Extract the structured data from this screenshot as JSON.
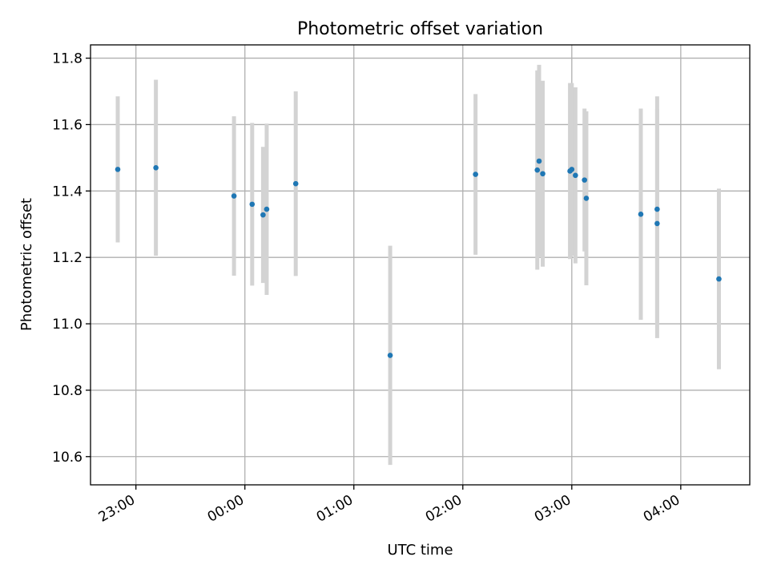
{
  "chart_data": {
    "type": "scatter",
    "title": "Photometric offset variation",
    "xlabel": "UTC time",
    "ylabel": "Photometric offset",
    "x_ticks": [
      "23:00",
      "00:00",
      "01:00",
      "02:00",
      "03:00",
      "04:00"
    ],
    "y_ticks": [
      "10.6",
      "10.8",
      "11.0",
      "11.2",
      "11.4",
      "11.6",
      "11.8"
    ],
    "xlim": [
      "22:35",
      "04:38"
    ],
    "ylim": [
      10.515,
      11.84
    ],
    "grid": true,
    "x_axis_format": "time",
    "series": [
      {
        "marker_color": "#1f77b4",
        "errorbar_color": "#d3d3d3",
        "points": [
          {
            "x": "22:50",
            "y": 11.465,
            "err": 0.22
          },
          {
            "x": "23:11",
            "y": 11.47,
            "err": 0.265
          },
          {
            "x": "23:54",
            "y": 11.385,
            "err": 0.24
          },
          {
            "x": "00:04",
            "y": 11.36,
            "err": 0.245
          },
          {
            "x": "00:10",
            "y": 11.328,
            "err": 0.205
          },
          {
            "x": "00:12",
            "y": 11.345,
            "err": 0.258
          },
          {
            "x": "00:28",
            "y": 11.422,
            "err": 0.278
          },
          {
            "x": "01:20",
            "y": 10.905,
            "err": 0.33
          },
          {
            "x": "02:07",
            "y": 11.45,
            "err": 0.242
          },
          {
            "x": "02:41",
            "y": 11.463,
            "err": 0.3
          },
          {
            "x": "02:42",
            "y": 11.49,
            "err": 0.29
          },
          {
            "x": "02:44",
            "y": 11.452,
            "err": 0.28
          },
          {
            "x": "02:59",
            "y": 11.46,
            "err": 0.265
          },
          {
            "x": "03:00",
            "y": 11.465,
            "err": 0.26
          },
          {
            "x": "03:02",
            "y": 11.447,
            "err": 0.265
          },
          {
            "x": "03:07",
            "y": 11.433,
            "err": 0.215
          },
          {
            "x": "03:08",
            "y": 11.378,
            "err": 0.262
          },
          {
            "x": "03:38",
            "y": 11.33,
            "err": 0.318
          },
          {
            "x": "03:47",
            "y": 11.345,
            "err": 0.34
          },
          {
            "x": "03:47",
            "y": 11.302,
            "err": 0.345
          },
          {
            "x": "04:21",
            "y": 11.135,
            "err": 0.272
          }
        ]
      }
    ]
  }
}
